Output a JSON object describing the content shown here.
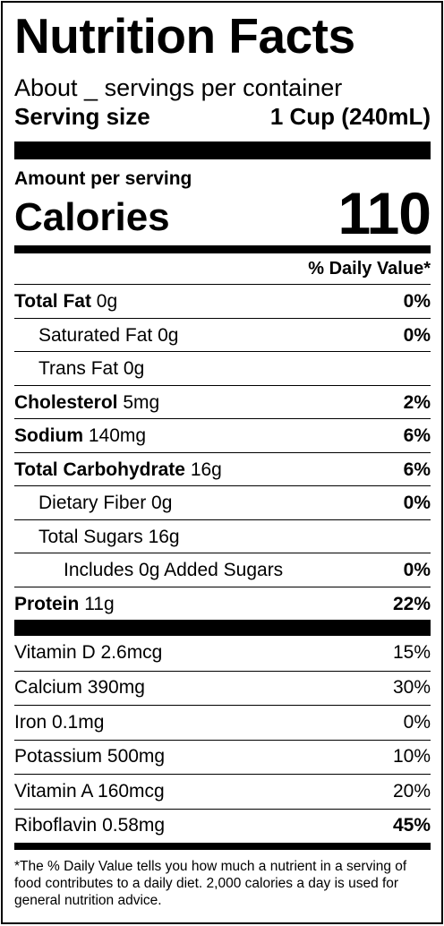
{
  "title": "Nutrition Facts",
  "servings_per_container": "About _ servings per container",
  "serving_size": {
    "label": "Serving size",
    "value": "1 Cup (240mL)"
  },
  "amount_per_serving": "Amount per serving",
  "calories": {
    "label": "Calories",
    "value": "110"
  },
  "daily_value_header": "% Daily Value*",
  "nutrients": [
    {
      "name": "Total Fat",
      "amount": "0g",
      "dv": "0%"
    },
    {
      "name": "Saturated Fat",
      "amount": "0g",
      "dv": "0%"
    },
    {
      "name": "Trans Fat",
      "amount": "0g",
      "dv": ""
    },
    {
      "name": "Cholesterol",
      "amount": "5mg",
      "dv": "2%"
    },
    {
      "name": "Sodium",
      "amount": "140mg",
      "dv": "6%"
    },
    {
      "name": "Total Carbohydrate",
      "amount": "16g",
      "dv": "6%"
    },
    {
      "name": "Dietary Fiber",
      "amount": "0g",
      "dv": "0%"
    },
    {
      "name": "Total Sugars",
      "amount": "16g",
      "dv": ""
    },
    {
      "name": "Includes 0g Added Sugars",
      "amount": "",
      "dv": "0%"
    },
    {
      "name": "Protein",
      "amount": "11g",
      "dv": "22%"
    }
  ],
  "vitamins": [
    {
      "name": "Vitamin D",
      "amount": "2.6mcg",
      "dv": "15%"
    },
    {
      "name": "Calcium",
      "amount": "390mg",
      "dv": "30%"
    },
    {
      "name": "Iron",
      "amount": "0.1mg",
      "dv": "0%"
    },
    {
      "name": "Potassium",
      "amount": "500mg",
      "dv": "10%"
    },
    {
      "name": "Vitamin A",
      "amount": "160mcg",
      "dv": "20%"
    },
    {
      "name": "Riboflavin",
      "amount": "0.58mg",
      "dv": "45%"
    }
  ],
  "footnote": "*The % Daily Value tells you how much a nutrient in a serving of food contributes to a daily diet. 2,000 calories a day is used for general nutrition advice."
}
